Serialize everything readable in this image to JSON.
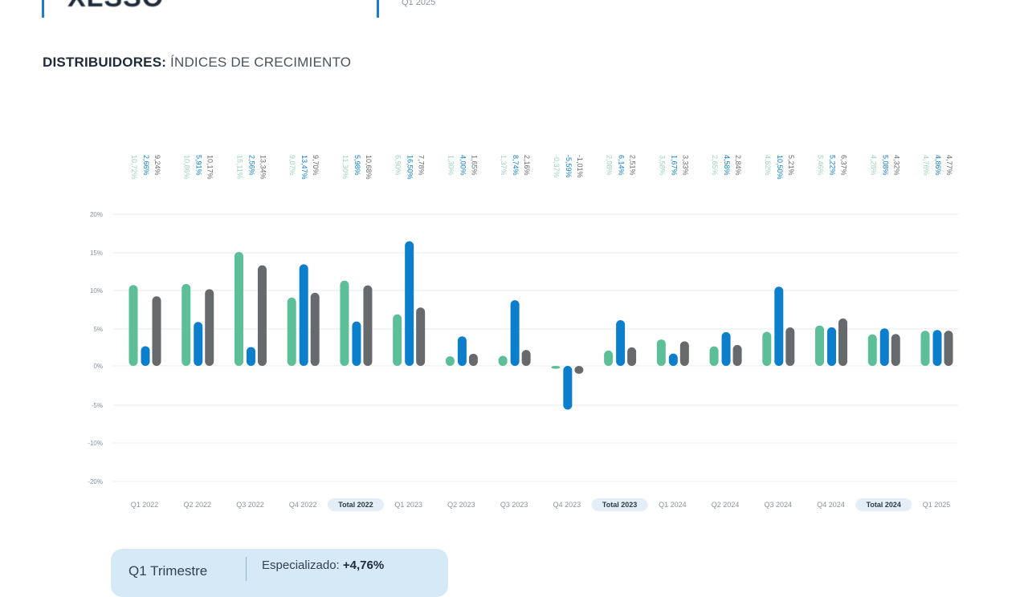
{
  "header": {
    "title": "XLSSO",
    "subtitle": "Q1 2025"
  },
  "section": {
    "title_bold": "DISTRIBUIDORES:",
    "title_rest": " ÍNDICES DE CRECIMIENTO"
  },
  "summary_card": {
    "period": "Q1 Trimestre",
    "label": "Especializado:",
    "value": "+4,76%"
  },
  "colors": {
    "series1": "#5cbf98",
    "series2": "#0b7fcc",
    "series3": "#676a6d",
    "grid": "#e6e9ec",
    "axis_text": "#8a929a",
    "total_badge_bg": "#e3eef7"
  },
  "chart_data": {
    "type": "bar",
    "categories": [
      "Q1 2022",
      "Q2 2022",
      "Q3 2022",
      "Q4 2022",
      "Total 2022",
      "Q1 2023",
      "Q2 2023",
      "Q3 2023",
      "Q4 2023",
      "Total 2023",
      "Q1 2024",
      "Q2 2024",
      "Q3 2024",
      "Q4 2024",
      "Total 2024",
      "Q1 2025"
    ],
    "highlighted_categories": [
      "Total 2022",
      "Total 2023",
      "Total 2024"
    ],
    "series": [
      {
        "values": [
          10.72,
          10.86,
          15.11,
          9.07,
          11.3,
          6.9,
          1.3,
          1.37,
          -0.37,
          2.08,
          3.58,
          2.65,
          4.62,
          5.46,
          4.28,
          4.76
        ],
        "labels": [
          "10,72%",
          "10,86%",
          "15,11%",
          "9,07%",
          "11,30%",
          "6,90%",
          "1,30%",
          "1,37%",
          "-0,37%",
          "2,08%",
          "3,58%",
          "2,65%",
          "4,62%",
          "5,46%",
          "4,28%",
          "4,76%"
        ]
      },
      {
        "values": [
          2.66,
          5.91,
          2.56,
          13.47,
          5.98,
          16.5,
          4.0,
          8.74,
          -5.59,
          6.14,
          1.67,
          4.58,
          10.5,
          5.22,
          5.08,
          4.86
        ],
        "labels": [
          "2,66%",
          "5,91%",
          "2,56%",
          "13,47%",
          "5,98%",
          "16,50%",
          "4,00%",
          "8,74%",
          "-5,59%",
          "6,14%",
          "1,67%",
          "4,58%",
          "10,50%",
          "5,22%",
          "5,08%",
          "4,86%"
        ]
      },
      {
        "values": [
          9.24,
          10.17,
          13.34,
          9.7,
          10.68,
          7.78,
          1.65,
          2.16,
          -1.01,
          2.51,
          3.33,
          2.84,
          5.21,
          6.37,
          4.32,
          4.77
        ],
        "labels": [
          "9,24%",
          "10,17%",
          "13,34%",
          "9,70%",
          "10,68%",
          "7,78%",
          "1,65%",
          "2,16%",
          "-1,01%",
          "2,51%",
          "3,33%",
          "2,84%",
          "5,21%",
          "6,37%",
          "4,32%",
          "4,77%"
        ]
      }
    ],
    "y_ticks": [
      20,
      15,
      10,
      5,
      0,
      -5,
      -10,
      -20
    ],
    "y_tick_labels": [
      "20%",
      "15%",
      "10%",
      "5%",
      "0%",
      "-5%",
      "-10%",
      "-20%"
    ],
    "grid": true,
    "legend": "none"
  }
}
